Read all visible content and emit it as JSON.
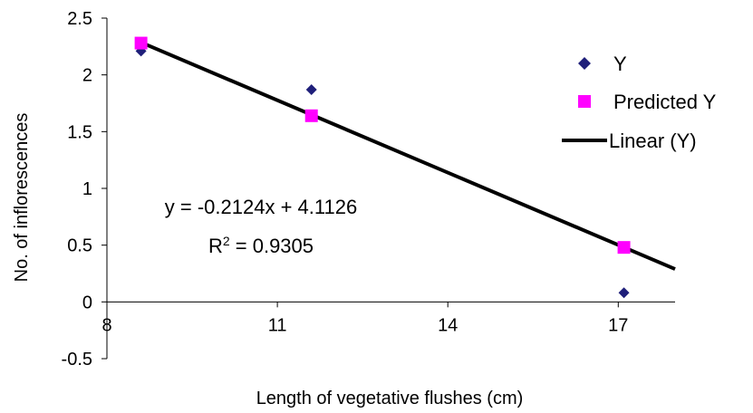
{
  "chart_data": {
    "type": "scatter",
    "xlabel": "Length of vegetative flushes (cm)",
    "ylabel": "No. of inflorescences",
    "xlim": [
      8,
      18
    ],
    "ylim": [
      -0.5,
      2.5
    ],
    "xticks": [
      "8",
      "11",
      "14",
      "17"
    ],
    "yticks": [
      "2.5",
      "2",
      "1.5",
      "1",
      "0.5",
      "0",
      "-0.5"
    ],
    "series": [
      {
        "name": "Y",
        "marker": "diamond",
        "color": "#1f1f7a",
        "points": [
          [
            8.6,
            2.21
          ],
          [
            11.6,
            1.87
          ],
          [
            17.1,
            0.08
          ]
        ]
      },
      {
        "name": "Predicted Y",
        "marker": "square",
        "color": "#ff00ff",
        "points": [
          [
            8.6,
            2.28
          ],
          [
            11.6,
            1.64
          ],
          [
            17.1,
            0.48
          ]
        ]
      }
    ],
    "trendline": {
      "name": "Linear (Y)",
      "color": "#000000",
      "slope": -0.2124,
      "intercept": 4.1126,
      "x_range": [
        8.6,
        18
      ]
    },
    "equation": "y = -0.2124x + 4.1126",
    "r_squared_label": "R",
    "r_squared_sup": "2",
    "r_squared_value": " = 0.9305",
    "legend_position": "right",
    "grid": false
  }
}
